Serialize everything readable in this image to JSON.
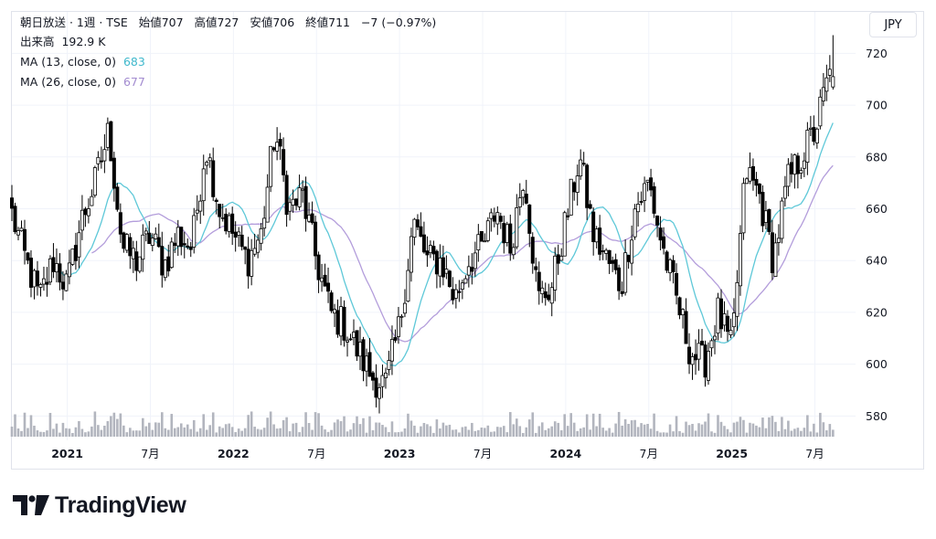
{
  "header": {
    "symbol": "朝日放送 · 1週 · TSE",
    "open_label": "始値",
    "open": "707",
    "high_label": "高値",
    "high": "727",
    "low_label": "安値",
    "low": "706",
    "close_label": "終値",
    "close": "711",
    "change": "−7 (−0.97%)"
  },
  "volume_row": {
    "label": "出来高",
    "value": "192.9 K"
  },
  "ma_rows": [
    {
      "label": "MA (13, close, 0)",
      "value": "683",
      "color": "#5ec8d8"
    },
    {
      "label": "MA (26, close, 0)",
      "value": "677",
      "color": "#b39ddb"
    }
  ],
  "currency": "JPY",
  "brand": "TradingView",
  "colors": {
    "candle": "#000000",
    "volume": "#b2b5be",
    "grid": "#f0f3fa",
    "text": "#131722"
  },
  "chart_data": {
    "type": "candlestick",
    "interval": "weekly",
    "y_axis_ticks": [
      580,
      600,
      620,
      640,
      660,
      680,
      700,
      720
    ],
    "y_range": [
      572,
      730
    ],
    "x_axis_ticks": [
      {
        "label": "2021",
        "bold": true,
        "date": "2021-01"
      },
      {
        "label": "7月",
        "bold": false,
        "date": "2021-07"
      },
      {
        "label": "2022",
        "bold": true,
        "date": "2022-01"
      },
      {
        "label": "7月",
        "bold": false,
        "date": "2022-07"
      },
      {
        "label": "2023",
        "bold": true,
        "date": "2023-01"
      },
      {
        "label": "7月",
        "bold": false,
        "date": "2023-07"
      },
      {
        "label": "2024",
        "bold": true,
        "date": "2024-01"
      },
      {
        "label": "7月",
        "bold": false,
        "date": "2024-07"
      },
      {
        "label": "2025",
        "bold": true,
        "date": "2025-01"
      },
      {
        "label": "7月",
        "bold": false,
        "date": "2025-07"
      }
    ],
    "x_range": [
      "2020-09",
      "2025-08"
    ],
    "close_keypoints": [
      [
        "2020-09",
        658
      ],
      [
        "2020-10",
        640
      ],
      [
        "2020-11",
        625
      ],
      [
        "2020-12",
        640
      ],
      [
        "2021-01",
        630
      ],
      [
        "2021-02",
        655
      ],
      [
        "2021-03",
        670
      ],
      [
        "2021-04",
        690
      ],
      [
        "2021-05",
        645
      ],
      [
        "2021-06",
        640
      ],
      [
        "2021-07",
        650
      ],
      [
        "2021-08",
        638
      ],
      [
        "2021-09",
        650
      ],
      [
        "2021-10",
        645
      ],
      [
        "2021-11",
        685
      ],
      [
        "2021-12",
        660
      ],
      [
        "2022-01",
        650
      ],
      [
        "2022-02",
        640
      ],
      [
        "2022-03",
        650
      ],
      [
        "2022-04",
        690
      ],
      [
        "2022-05",
        660
      ],
      [
        "2022-06",
        665
      ],
      [
        "2022-07",
        640
      ],
      [
        "2022-08",
        620
      ],
      [
        "2022-09",
        615
      ],
      [
        "2022-10",
        605
      ],
      [
        "2022-11",
        595
      ],
      [
        "2022-12",
        592
      ],
      [
        "2023-01",
        615
      ],
      [
        "2023-02",
        655
      ],
      [
        "2023-03",
        640
      ],
      [
        "2023-04",
        640
      ],
      [
        "2023-05",
        625
      ],
      [
        "2023-06",
        640
      ],
      [
        "2023-07",
        645
      ],
      [
        "2023-08",
        660
      ],
      [
        "2023-09",
        645
      ],
      [
        "2023-10",
        675
      ],
      [
        "2023-11",
        625
      ],
      [
        "2023-12",
        630
      ],
      [
        "2024-01",
        655
      ],
      [
        "2024-02",
        680
      ],
      [
        "2024-03",
        650
      ],
      [
        "2024-04",
        640
      ],
      [
        "2024-05",
        630
      ],
      [
        "2024-06",
        660
      ],
      [
        "2024-07",
        670
      ],
      [
        "2024-08",
        645
      ],
      [
        "2024-09",
        625
      ],
      [
        "2024-10",
        605
      ],
      [
        "2024-11",
        600
      ],
      [
        "2024-12",
        620
      ],
      [
        "2025-01",
        605
      ],
      [
        "2025-02",
        675
      ],
      [
        "2025-03",
        665
      ],
      [
        "2025-04",
        640
      ],
      [
        "2025-05",
        670
      ],
      [
        "2025-06",
        680
      ],
      [
        "2025-07",
        690
      ],
      [
        "2025-08",
        711
      ]
    ],
    "last_bar": {
      "open": 707,
      "high": 727,
      "low": 706,
      "close": 711
    },
    "series": [
      {
        "name": "MA (13, close, 0)",
        "last": 683
      },
      {
        "name": "MA (26, close, 0)",
        "last": 677
      }
    ],
    "volume_last": "192.9 K"
  }
}
